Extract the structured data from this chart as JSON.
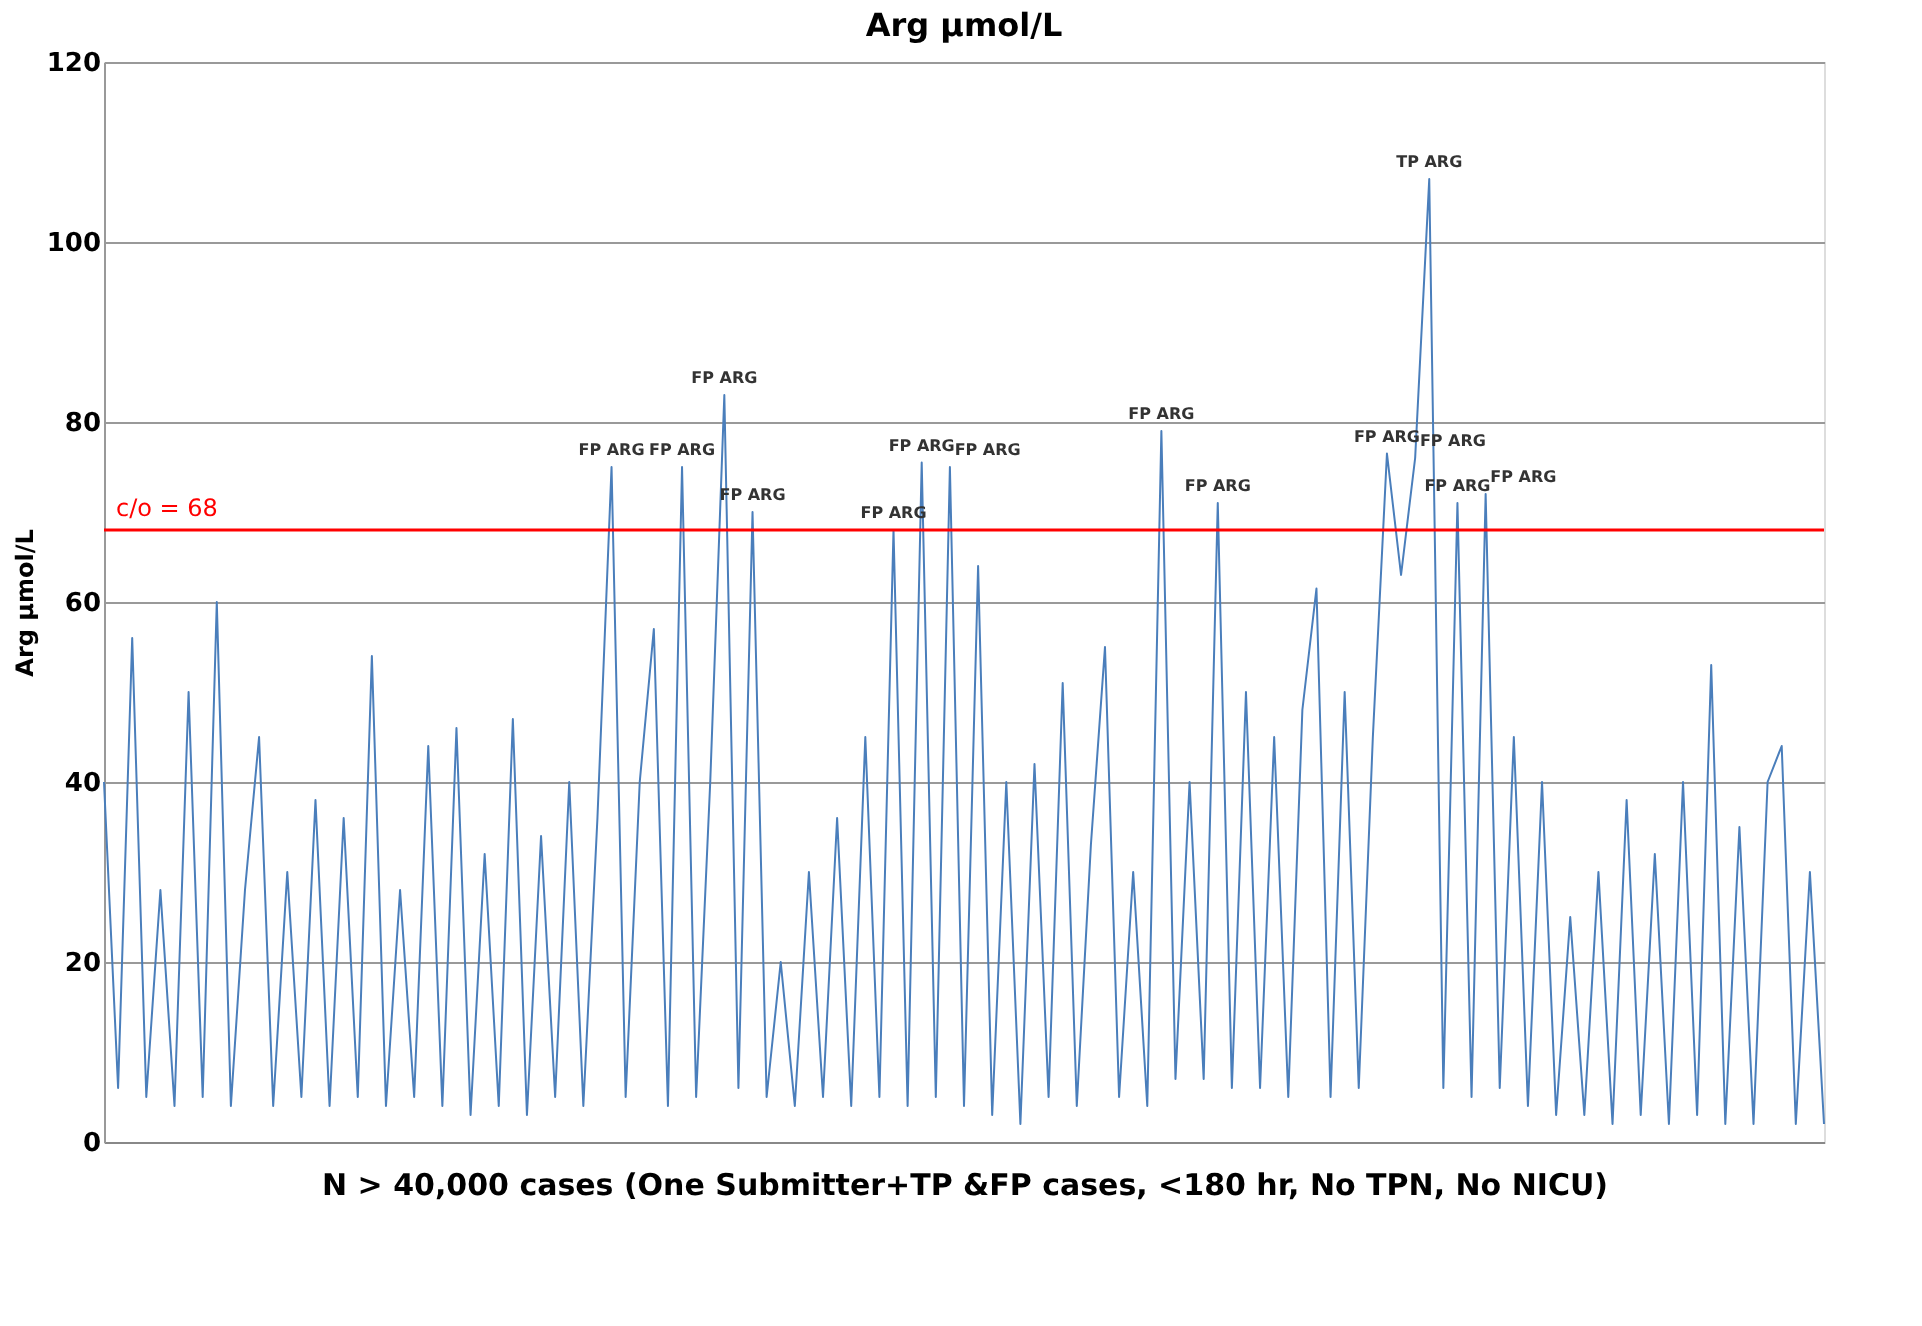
{
  "chart_data": {
    "type": "line",
    "title": "Arg µmol/L",
    "ylabel": "Arg µmol/L",
    "xlabel": "N > 40,000 cases (One Submitter+TP &FP cases, <180 hr, No TPN, No NICU)",
    "categories": [
      null,
      null,
      null,
      null,
      null,
      null,
      null,
      null,
      null,
      null,
      null,
      null,
      null,
      null,
      null,
      null,
      null,
      null,
      null,
      null,
      null,
      null,
      null,
      null,
      null,
      null,
      null,
      null,
      null,
      null,
      null,
      null,
      null,
      null,
      null,
      null,
      null,
      null,
      null,
      null,
      null,
      null,
      null,
      null,
      null,
      null,
      null,
      null,
      null,
      null,
      null,
      null,
      null,
      null,
      null,
      null,
      null,
      null,
      null,
      null,
      null,
      null,
      null,
      null,
      null,
      null,
      null,
      null,
      null,
      null,
      null,
      null,
      null,
      null,
      null,
      null,
      null,
      null,
      null,
      null,
      null,
      null,
      null,
      null,
      null,
      null,
      null,
      null,
      null,
      null,
      null,
      null,
      null,
      null,
      null,
      null,
      null,
      null,
      null,
      null,
      null,
      null,
      null,
      null,
      null,
      null,
      null,
      null,
      null,
      null,
      null,
      null,
      null,
      null,
      null,
      null,
      null,
      null,
      null,
      null,
      null,
      null,
      null
    ],
    "series": [
      {
        "color": "#4a7ebb",
        "values": [
          40,
          6,
          56,
          5,
          28,
          4,
          50,
          5,
          60,
          4,
          28,
          45,
          4,
          30,
          5,
          38,
          4,
          36,
          5,
          54,
          4,
          28,
          5,
          44,
          4,
          46,
          3,
          32,
          4,
          47,
          3,
          34,
          5,
          40,
          4,
          36,
          75,
          5,
          40,
          57,
          4,
          75,
          5,
          40,
          83,
          6,
          70,
          5,
          20,
          4,
          30,
          5,
          36,
          4,
          45,
          5,
          68,
          4,
          75.5,
          5,
          75,
          4,
          64,
          3,
          40,
          2,
          42,
          5,
          51,
          4,
          33,
          55,
          5,
          30,
          4,
          79,
          7,
          40,
          7,
          71,
          6,
          50,
          6,
          45,
          5,
          48,
          61.5,
          5,
          50,
          6,
          45,
          76.5,
          63,
          76,
          107,
          6,
          71,
          5,
          72,
          6,
          45,
          4,
          40,
          3,
          25,
          3,
          30,
          2,
          38,
          3,
          32,
          2,
          40,
          3,
          53,
          2,
          35,
          2,
          40,
          44,
          2,
          30,
          2
        ],
        "value_labels": [
          null,
          null,
          null,
          null,
          null,
          null,
          null,
          null,
          null,
          null,
          null,
          null,
          null,
          null,
          null,
          null,
          null,
          null,
          null,
          null,
          null,
          null,
          null,
          null,
          null,
          null,
          null,
          null,
          null,
          null,
          null,
          null,
          null,
          null,
          null,
          null,
          "FP ARG",
          null,
          null,
          null,
          null,
          "FP ARG",
          null,
          null,
          "FP ARG",
          null,
          "FP ARG",
          null,
          null,
          null,
          null,
          null,
          null,
          null,
          null,
          null,
          "FP ARG",
          null,
          "FP ARG",
          null,
          "FP ARG",
          null,
          null,
          null,
          null,
          null,
          null,
          null,
          null,
          null,
          null,
          null,
          null,
          null,
          null,
          "FP ARG",
          null,
          null,
          null,
          "FP ARG",
          null,
          null,
          null,
          null,
          null,
          null,
          null,
          null,
          null,
          null,
          null,
          "FP ARG",
          null,
          "FP ARG",
          "TP ARG",
          null,
          "FP ARG",
          null,
          "FP ARG",
          null,
          null,
          null,
          null,
          null,
          null,
          null,
          null,
          null,
          null,
          null,
          null,
          null,
          null,
          null,
          null,
          null,
          null,
          null,
          null,
          null,
          null,
          null,
          null
        ]
      }
    ],
    "ylim": [
      0,
      120
    ],
    "yticks": [
      0,
      20,
      40,
      60,
      80,
      100,
      120
    ],
    "grid": "y",
    "tick_labels": "y",
    "marker": "none",
    "line_style": "solid",
    "ref_lines": [
      {
        "axis": "y",
        "value": 68,
        "label": "c/o = 68",
        "color": "#ff0000"
      }
    ]
  }
}
